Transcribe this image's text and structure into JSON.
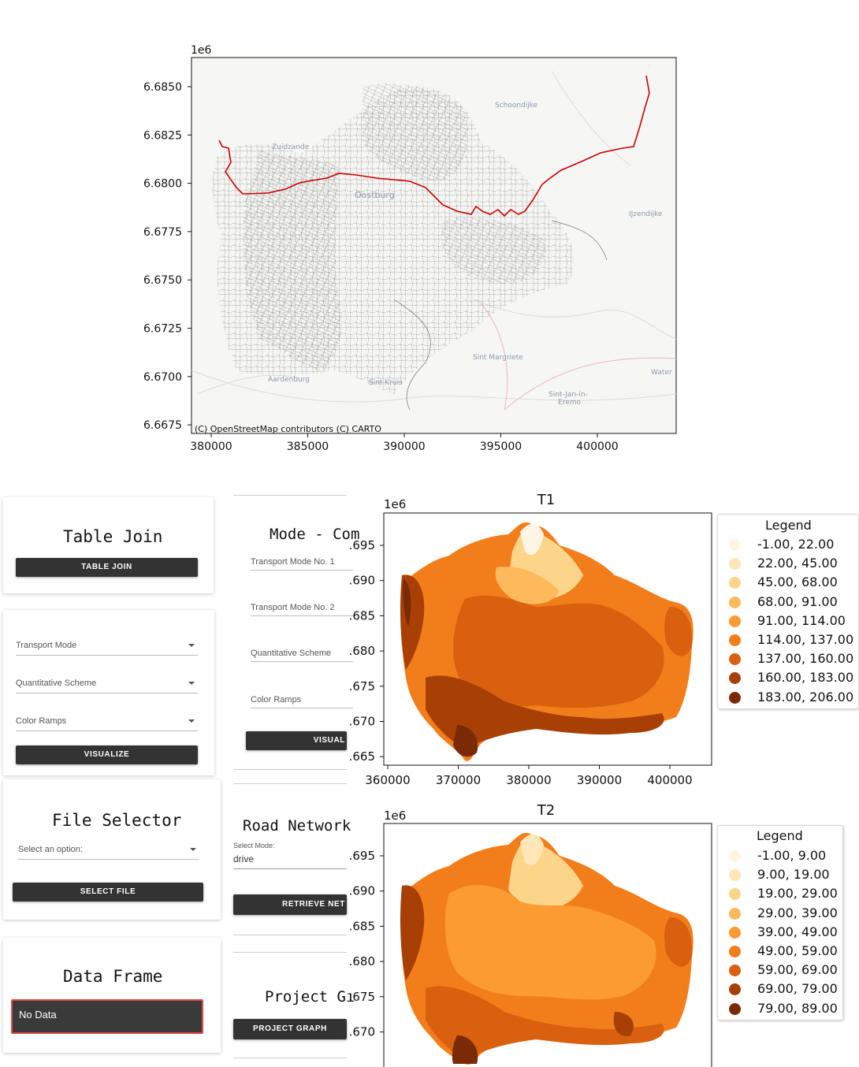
{
  "top_map": {
    "exponent": "1e6",
    "yticks": [
      "6.6850",
      "6.6825",
      "6.6800",
      "6.6775",
      "6.6750",
      "6.6725",
      "6.6700",
      "6.6675"
    ],
    "xticks": [
      "380000",
      "385000",
      "390000",
      "395000",
      "400000"
    ],
    "attribution": "(C) OpenStreetMap contributors (C) CARTO",
    "place_labels": {
      "schoondijke": "Schoondijke",
      "zuidzande": "Zuidzande",
      "oostburg": "Oostburg",
      "ijzendijke": "IJzendijke",
      "sint_margriete": "Sint Margriete",
      "aardenburg": "Aardenburg",
      "sint_kruis": "Sint Kruis",
      "sint_jan": "Sint-Jan-in-",
      "sint_jan_2": "Eremo",
      "water": "Water"
    },
    "route_color": "#cc0000"
  },
  "panels": {
    "table_join": {
      "title": "Table Join",
      "button": "TABLE JOIN"
    },
    "visualize": {
      "transport_mode": "Transport Mode",
      "quantitative_scheme": "Quantitative Scheme",
      "color_ramps": "Color Ramps",
      "button": "VISUALIZE"
    },
    "mode_compare": {
      "title": "Mode - Com",
      "transport_mode_1": "Transport Mode No. 1",
      "transport_mode_2": "Transport Mode No. 2",
      "quantitative_scheme": "Quantitative Scheme",
      "color_ramps": "Color Ramps",
      "button": "VISUAL"
    },
    "file_selector": {
      "title": "File Selector",
      "placeholder": "Select an option:",
      "button": "SELECT FILE"
    },
    "road_network": {
      "title": "Road Network",
      "select_mode_label": "Select Mode:",
      "select_mode_value": "drive",
      "button": "RETRIEVE NET"
    },
    "data_frame": {
      "title": "Data Frame",
      "value": "No Data"
    },
    "project_graph": {
      "title": "Project Gı",
      "button": "PROJECT GRAPH"
    }
  },
  "chart_data": [
    {
      "type": "choropleth",
      "title": "T1",
      "exponent": "1e6",
      "yticks": [
        ".695",
        ".690",
        ".685",
        ".680",
        ".675",
        ".670",
        ".665"
      ],
      "xticks": [
        "360000",
        "370000",
        "380000",
        "390000",
        "400000"
      ],
      "legend_title": "Legend",
      "legend_placement": "right",
      "legend": [
        {
          "label": "-1.00,  22.00",
          "color": "#fff5e4"
        },
        {
          "label": "22.00,  45.00",
          "color": "#fee6b8"
        },
        {
          "label": "45.00,  68.00",
          "color": "#fdd58a"
        },
        {
          "label": "68.00,  91.00",
          "color": "#fdb95c"
        },
        {
          "label": "91.00, 114.00",
          "color": "#fb9b32"
        },
        {
          "label": "114.00, 137.00",
          "color": "#f27e1b"
        },
        {
          "label": "137.00, 160.00",
          "color": "#d8600e"
        },
        {
          "label": "160.00, 183.00",
          "color": "#a84005"
        },
        {
          "label": "183.00, 206.00",
          "color": "#7a2a04"
        }
      ]
    },
    {
      "type": "choropleth",
      "title": "T2",
      "exponent": "1e6",
      "yticks": [
        ".695",
        ".690",
        ".685",
        ".680",
        ".675",
        ".670"
      ],
      "legend_title": "Legend",
      "legend_placement": "right",
      "legend": [
        {
          "label": "-1.00,  9.00",
          "color": "#fff5e4"
        },
        {
          "label": "9.00, 19.00",
          "color": "#fee6b8"
        },
        {
          "label": "19.00, 29.00",
          "color": "#fdd58a"
        },
        {
          "label": "29.00, 39.00",
          "color": "#fdb95c"
        },
        {
          "label": "39.00, 49.00",
          "color": "#fb9b32"
        },
        {
          "label": "49.00, 59.00",
          "color": "#f27e1b"
        },
        {
          "label": "59.00, 69.00",
          "color": "#d8600e"
        },
        {
          "label": "69.00, 79.00",
          "color": "#a84005"
        },
        {
          "label": "79.00, 89.00",
          "color": "#7a2a04"
        }
      ]
    }
  ]
}
